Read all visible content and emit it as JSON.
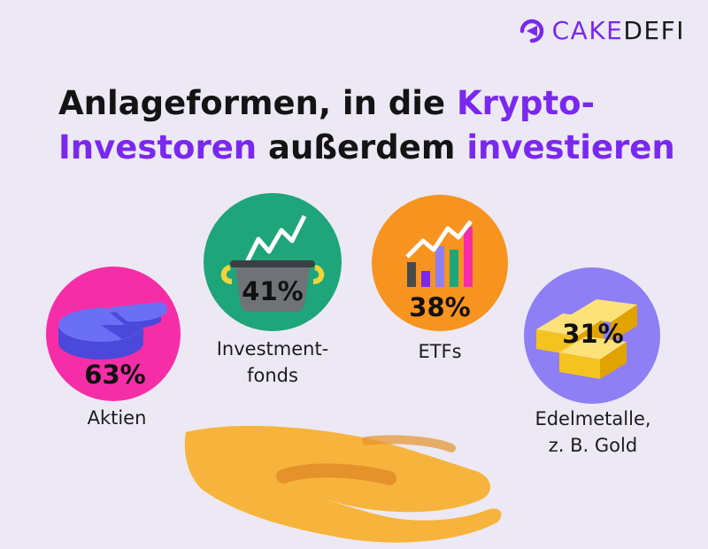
{
  "brand": {
    "logo_cake": "CAKE",
    "logo_defi": "DEFI",
    "purple": "#7a28ef"
  },
  "title": {
    "part1": "Anlageformen, in die ",
    "part2_highlight": "Krypto-",
    "part3_highlight": "Investoren",
    "part4": " außerdem ",
    "part5_highlight": "investieren"
  },
  "chart_data": {
    "type": "bar",
    "title": "Anlageformen, in die Krypto-Investoren außerdem investieren",
    "categories": [
      "Aktien",
      "Investmentfonds",
      "ETFs",
      "Edelmetalle, z. B. Gold"
    ],
    "values": [
      63,
      41,
      38,
      31
    ],
    "value_labels": [
      "63%",
      "41%",
      "38%",
      "31%"
    ],
    "colors": [
      "#f52ea8",
      "#1fa57a",
      "#f7931f",
      "#8e7ff5"
    ]
  },
  "items": [
    {
      "pct": "63%",
      "label": "Aktien",
      "icon": "pie-chart-icon"
    },
    {
      "pct": "41%",
      "label_line1": "Investment-",
      "label_line2": "fonds",
      "icon": "pot-with-chart-icon"
    },
    {
      "pct": "38%",
      "label": "ETFs",
      "icon": "bar-chart-icon"
    },
    {
      "pct": "31%",
      "label_line1": "Edelmetalle,",
      "label_line2": "z. B. Gold",
      "icon": "gold-bars-icon"
    }
  ]
}
